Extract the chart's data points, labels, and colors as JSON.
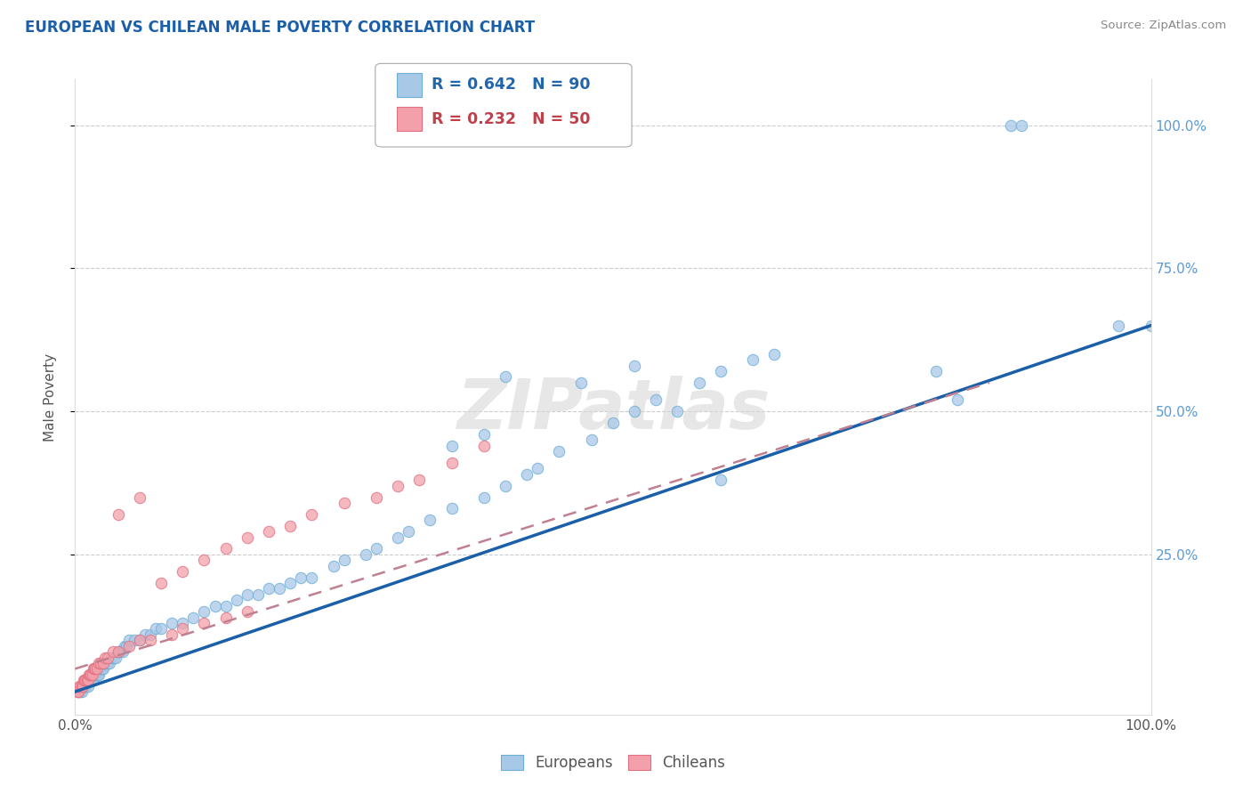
{
  "title": "EUROPEAN VS CHILEAN MALE POVERTY CORRELATION CHART",
  "source": "Source: ZipAtlas.com",
  "ylabel": "Male Poverty",
  "legend_european": "Europeans",
  "legend_chilean": "Chileans",
  "european_R": "R = 0.642",
  "european_N": "N = 90",
  "chilean_R": "R = 0.232",
  "chilean_N": "N = 50",
  "european_color": "#a8c8e8",
  "chilean_color": "#f4a0aa",
  "european_edge_color": "#6baed6",
  "chilean_edge_color": "#e07080",
  "trend_european_color": "#1a5fa8",
  "trend_chilean_color": "#c08090",
  "background_color": "#ffffff",
  "watermark": "ZIPatlas",
  "xlim": [
    0,
    1.0
  ],
  "ylim": [
    -0.03,
    1.08
  ],
  "european_scatter_x": [
    0.003,
    0.005,
    0.006,
    0.007,
    0.008,
    0.009,
    0.01,
    0.01,
    0.012,
    0.013,
    0.014,
    0.015,
    0.016,
    0.017,
    0.018,
    0.019,
    0.02,
    0.021,
    0.022,
    0.023,
    0.024,
    0.025,
    0.026,
    0.027,
    0.028,
    0.03,
    0.032,
    0.034,
    0.036,
    0.038,
    0.04,
    0.042,
    0.044,
    0.046,
    0.048,
    0.05,
    0.055,
    0.06,
    0.065,
    0.07,
    0.075,
    0.08,
    0.09,
    0.1,
    0.11,
    0.12,
    0.13,
    0.14,
    0.15,
    0.16,
    0.17,
    0.18,
    0.19,
    0.2,
    0.21,
    0.22,
    0.24,
    0.25,
    0.27,
    0.28,
    0.3,
    0.31,
    0.33,
    0.35,
    0.38,
    0.4,
    0.42,
    0.43,
    0.45,
    0.48,
    0.5,
    0.52,
    0.54,
    0.56,
    0.58,
    0.6,
    0.63,
    0.65,
    0.35,
    0.38,
    0.4,
    0.47,
    0.52,
    0.6,
    0.8,
    0.82,
    0.87,
    0.88,
    0.97,
    1.0
  ],
  "european_scatter_y": [
    0.01,
    0.01,
    0.01,
    0.02,
    0.02,
    0.02,
    0.02,
    0.03,
    0.02,
    0.03,
    0.03,
    0.03,
    0.03,
    0.03,
    0.04,
    0.04,
    0.04,
    0.04,
    0.04,
    0.05,
    0.05,
    0.05,
    0.05,
    0.06,
    0.06,
    0.06,
    0.06,
    0.07,
    0.07,
    0.07,
    0.08,
    0.08,
    0.08,
    0.09,
    0.09,
    0.1,
    0.1,
    0.1,
    0.11,
    0.11,
    0.12,
    0.12,
    0.13,
    0.13,
    0.14,
    0.15,
    0.16,
    0.16,
    0.17,
    0.18,
    0.18,
    0.19,
    0.19,
    0.2,
    0.21,
    0.21,
    0.23,
    0.24,
    0.25,
    0.26,
    0.28,
    0.29,
    0.31,
    0.33,
    0.35,
    0.37,
    0.39,
    0.4,
    0.43,
    0.45,
    0.48,
    0.5,
    0.52,
    0.5,
    0.55,
    0.57,
    0.59,
    0.6,
    0.44,
    0.46,
    0.56,
    0.55,
    0.58,
    0.38,
    0.57,
    0.52,
    1.0,
    1.0,
    0.65,
    0.65
  ],
  "chilean_scatter_x": [
    0.002,
    0.003,
    0.004,
    0.005,
    0.006,
    0.007,
    0.008,
    0.009,
    0.01,
    0.011,
    0.012,
    0.013,
    0.014,
    0.015,
    0.016,
    0.017,
    0.018,
    0.019,
    0.02,
    0.022,
    0.024,
    0.026,
    0.028,
    0.03,
    0.035,
    0.04,
    0.05,
    0.06,
    0.07,
    0.09,
    0.1,
    0.12,
    0.14,
    0.16,
    0.04,
    0.06,
    0.08,
    0.1,
    0.12,
    0.14,
    0.16,
    0.18,
    0.2,
    0.22,
    0.25,
    0.28,
    0.3,
    0.32,
    0.35,
    0.38
  ],
  "chilean_scatter_y": [
    0.01,
    0.01,
    0.02,
    0.02,
    0.02,
    0.02,
    0.03,
    0.03,
    0.03,
    0.03,
    0.03,
    0.04,
    0.04,
    0.04,
    0.04,
    0.05,
    0.05,
    0.05,
    0.05,
    0.06,
    0.06,
    0.06,
    0.07,
    0.07,
    0.08,
    0.08,
    0.09,
    0.1,
    0.1,
    0.11,
    0.12,
    0.13,
    0.14,
    0.15,
    0.32,
    0.35,
    0.2,
    0.22,
    0.24,
    0.26,
    0.28,
    0.29,
    0.3,
    0.32,
    0.34,
    0.35,
    0.37,
    0.38,
    0.41,
    0.44
  ],
  "eu_trend_x": [
    0.0,
    1.0
  ],
  "eu_trend_y": [
    0.01,
    0.65
  ],
  "ch_trend_x": [
    0.0,
    0.85
  ],
  "ch_trend_y": [
    0.05,
    0.55
  ]
}
